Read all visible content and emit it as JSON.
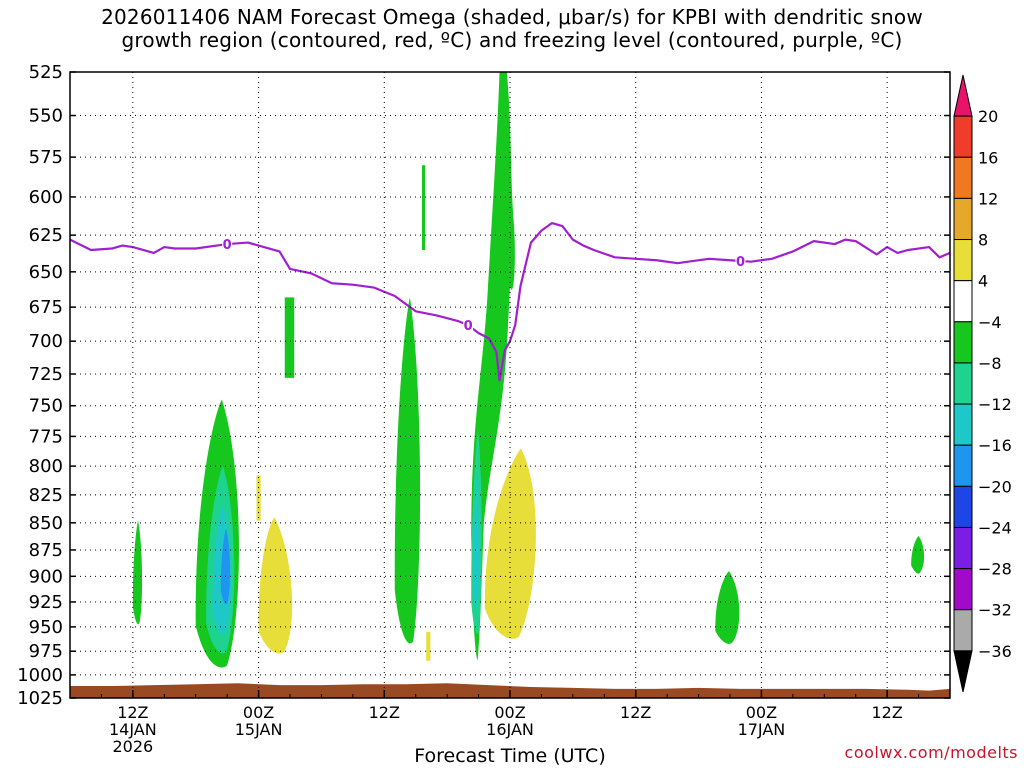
{
  "title": {
    "line1": "2026011406 NAM Forecast Omega (shaded, μbar/s) for KPBI with dendritic snow",
    "line2": "growth region (contoured, red, ºC) and freezing level (contoured, purple, ºC)"
  },
  "credit": "coolwx.com/modelts",
  "chart_data": {
    "type": "contour",
    "xlabel": "Forecast Time (UTC)",
    "ylabel": "",
    "y_scale": "log-pressure (hPa), inverted",
    "ylim": [
      1025,
      525
    ],
    "xlim_hours_from_init": [
      0,
      84
    ],
    "y_ticks": [
      525,
      550,
      575,
      600,
      625,
      650,
      675,
      700,
      725,
      750,
      775,
      800,
      825,
      850,
      875,
      900,
      925,
      950,
      975,
      1000,
      1025
    ],
    "x_ticks": [
      {
        "hour": 6,
        "lines": [
          "12Z",
          "14JAN",
          "2026"
        ]
      },
      {
        "hour": 18,
        "lines": [
          "00Z",
          "15JAN"
        ]
      },
      {
        "hour": 30,
        "lines": [
          "12Z"
        ]
      },
      {
        "hour": 42,
        "lines": [
          "00Z",
          "16JAN"
        ]
      },
      {
        "hour": 54,
        "lines": [
          "12Z"
        ]
      },
      {
        "hour": 66,
        "lines": [
          "00Z",
          "17JAN"
        ]
      },
      {
        "hour": 78,
        "lines": [
          "12Z"
        ]
      }
    ],
    "grid": true,
    "colorbar": {
      "position": "right",
      "levels": [
        20,
        16,
        12,
        8,
        4,
        -4,
        -8,
        -12,
        -16,
        -20,
        -24,
        -28,
        -32,
        -36
      ],
      "bins": [
        {
          "range": [
            20,
            24
          ],
          "color": "#e8146a"
        },
        {
          "range": [
            16,
            20
          ],
          "color": "#f03c2a"
        },
        {
          "range": [
            12,
            16
          ],
          "color": "#f07820"
        },
        {
          "range": [
            8,
            12
          ],
          "color": "#e6a82a"
        },
        {
          "range": [
            4,
            8
          ],
          "color": "#e8de3a"
        },
        {
          "range": [
            -4,
            4
          ],
          "color": "#ffffff"
        },
        {
          "range": [
            -8,
            -4
          ],
          "color": "#16c81e"
        },
        {
          "range": [
            -12,
            -8
          ],
          "color": "#1ed290"
        },
        {
          "range": [
            -16,
            -12
          ],
          "color": "#1ec8c8"
        },
        {
          "range": [
            -20,
            -16
          ],
          "color": "#1e96f0"
        },
        {
          "range": [
            -24,
            -20
          ],
          "color": "#1e46e6"
        },
        {
          "range": [
            -28,
            -24
          ],
          "color": "#7a1ee6"
        },
        {
          "range": [
            -32,
            -28
          ],
          "color": "#a00ac8"
        },
        {
          "range": [
            -36,
            -32
          ],
          "color": "#aaaaaa"
        },
        {
          "range": [
            -40,
            -36
          ],
          "color": "#000000"
        }
      ]
    },
    "freezing_level": {
      "label": "0",
      "color": "#a020d0",
      "points": [
        [
          0,
          628
        ],
        [
          2,
          635
        ],
        [
          4,
          634
        ],
        [
          5,
          632
        ],
        [
          6,
          633
        ],
        [
          8,
          637
        ],
        [
          9,
          633
        ],
        [
          10,
          634
        ],
        [
          12,
          634
        ],
        [
          14,
          632
        ],
        [
          15,
          631
        ],
        [
          17,
          630
        ],
        [
          18,
          632
        ],
        [
          20,
          636
        ],
        [
          21,
          648
        ],
        [
          23,
          651
        ],
        [
          25,
          658
        ],
        [
          27,
          659
        ],
        [
          29,
          661
        ],
        [
          31,
          667
        ],
        [
          33,
          678
        ],
        [
          35,
          681
        ],
        [
          37,
          685
        ],
        [
          38,
          688
        ],
        [
          39,
          694
        ],
        [
          40,
          698
        ],
        [
          40.7,
          708
        ],
        [
          41,
          730
        ],
        [
          41.5,
          707
        ],
        [
          42,
          700
        ],
        [
          42.5,
          688
        ],
        [
          43,
          660
        ],
        [
          44,
          630
        ],
        [
          45,
          622
        ],
        [
          46,
          617
        ],
        [
          47,
          619
        ],
        [
          48,
          628
        ],
        [
          49,
          632
        ],
        [
          50,
          635
        ],
        [
          52,
          640
        ],
        [
          54,
          641
        ],
        [
          56,
          642
        ],
        [
          58,
          644
        ],
        [
          59,
          643
        ],
        [
          61,
          641
        ],
        [
          63,
          642
        ],
        [
          65,
          643
        ],
        [
          67,
          641
        ],
        [
          69,
          636
        ],
        [
          71,
          629
        ],
        [
          73,
          631
        ],
        [
          74,
          628
        ],
        [
          75,
          629
        ],
        [
          77,
          638
        ],
        [
          78,
          633
        ],
        [
          79,
          637
        ],
        [
          80,
          635
        ],
        [
          82,
          633
        ],
        [
          83,
          640
        ],
        [
          84,
          637
        ]
      ],
      "contour_labels_at_hours": [
        15,
        38,
        64
      ]
    },
    "omega_regions": [
      {
        "value_bin": "4 to 8",
        "description": "weak ascent-negative region near 00Z 15JAN",
        "t_range_hours": [
          18.0,
          21.5
        ],
        "p_range_hPa": [
          850,
          975
        ]
      },
      {
        "value_bin": "4 to 8",
        "description": "positive region 16JAN",
        "t_range_hours": [
          39.5,
          44.5
        ],
        "p_range_hPa": [
          790,
          960
        ]
      },
      {
        "value_bin": "-8 to -4",
        "description": "lower column 14-15JAN",
        "t_range_hours": [
          12.0,
          16.5
        ],
        "p_range_hPa": [
          740,
          990
        ]
      },
      {
        "value_bin": "-16 to -20",
        "description": "core 14-15JAN",
        "t_range_hours": [
          14.5,
          15.5
        ],
        "p_range_hPa": [
          855,
          925
        ]
      },
      {
        "value_bin": "-8 to -4",
        "description": "deep column 15-16JAN",
        "t_range_hours": [
          38.5,
          43.5
        ],
        "p_range_hPa": [
          525,
          985
        ]
      },
      {
        "value_bin": "-8 to -4",
        "description": "column near 12Z 15JAN",
        "t_range_hours": [
          31.0,
          33.5
        ],
        "p_range_hPa": [
          675,
          965
        ]
      },
      {
        "value_bin": "-8 to -4",
        "description": "isolated 17JAN",
        "t_range_hours": [
          61.5,
          64.0
        ],
        "p_range_hPa": [
          905,
          965
        ]
      },
      {
        "value_bin": "-8 to -4",
        "description": "isolated 17JAN late",
        "t_range_hours": [
          80.5,
          81.5
        ],
        "p_range_hPa": [
          865,
          895
        ]
      }
    ],
    "surface_shading": {
      "color": "#9a4a22",
      "description": "below ground surface pressure ~1010 hPa"
    }
  }
}
